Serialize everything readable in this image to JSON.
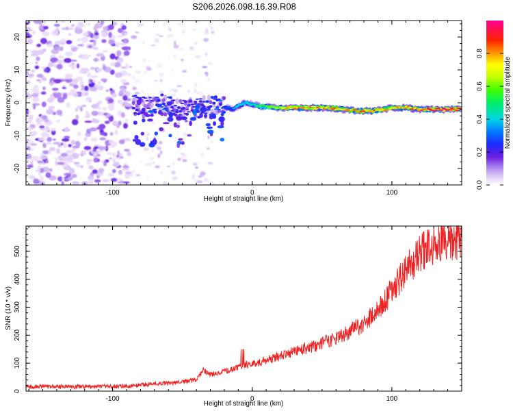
{
  "figure": {
    "title": "S206.2026.098.16.39.R08"
  },
  "chart_data": [
    {
      "type": "heatmap",
      "name": "spectrogram",
      "title": "S206.2026.098.16.39.R08",
      "xlabel": "Height of straight line (km)",
      "ylabel": "Frequency (Hz)",
      "xlim": [
        -162,
        150
      ],
      "ylim": [
        -25,
        25
      ],
      "xticks": [
        -100,
        0,
        100
      ],
      "yticks": [
        -20,
        -10,
        0,
        10,
        20
      ],
      "xtick_labels": [
        "-100",
        "0",
        "100"
      ],
      "ytick_labels": [
        "-20",
        "-10",
        "0",
        "10",
        "20"
      ],
      "colorbar": {
        "label": "Normalized spectral amplitude",
        "range": [
          0,
          1
        ],
        "ticks": [
          0.0,
          0.2,
          0.4,
          0.6,
          0.8
        ],
        "tick_labels": [
          "0.0",
          "0.2",
          "0.4",
          "0.6",
          "0.8"
        ]
      },
      "ridge_frequency_hz": {
        "x": [
          -85,
          -75,
          -65,
          -55,
          -45,
          -35,
          -25,
          -15,
          -5,
          5,
          15,
          25,
          40,
          55,
          65,
          75,
          85,
          95,
          100,
          110,
          120,
          130,
          140,
          150
        ],
        "y": [
          -0.5,
          -1.5,
          -0.5,
          -1.5,
          -2,
          -1.5,
          -0.5,
          -2,
          0,
          -1,
          -1.5,
          -1.5,
          -1.5,
          -1.5,
          -2,
          -2.5,
          -2.5,
          -2,
          -1.5,
          -1.5,
          -2,
          -2,
          -2,
          -2
        ]
      },
      "ridge_amplitude": {
        "x": [
          -85,
          -75,
          -65,
          -55,
          -45,
          -35,
          -25,
          -15,
          -5,
          5,
          15,
          25,
          40,
          55,
          65,
          75,
          85,
          95,
          100,
          110,
          120,
          130,
          140,
          150
        ],
        "y": [
          0.25,
          0.2,
          0.3,
          0.25,
          0.2,
          0.25,
          0.3,
          0.3,
          0.45,
          0.5,
          0.6,
          0.75,
          0.85,
          0.8,
          0.75,
          0.8,
          0.85,
          0.8,
          0.75,
          0.8,
          0.9,
          0.95,
          0.95,
          0.9
        ]
      },
      "noise_region_x": [
        -162,
        -88
      ]
    },
    {
      "type": "line",
      "name": "snr",
      "xlabel": "Height of straight line (km)",
      "ylabel": "SNR (10 * v/v)",
      "xlim": [
        -162,
        150
      ],
      "ylim": [
        0,
        590
      ],
      "xticks": [
        -100,
        0,
        100
      ],
      "yticks": [
        0,
        100,
        200,
        300,
        400,
        500
      ],
      "xtick_labels": [
        "-100",
        "0",
        "100"
      ],
      "ytick_labels": [
        "0",
        "100",
        "200",
        "300",
        "400",
        "500"
      ],
      "series": [
        {
          "name": "SNR",
          "color": "#ee2222",
          "x": [
            -162,
            -150,
            -140,
            -120,
            -100,
            -90,
            -80,
            -70,
            -60,
            -50,
            -40,
            -35,
            -30,
            -25,
            -20,
            -10,
            -5,
            0,
            10,
            20,
            30,
            40,
            50,
            60,
            70,
            80,
            90,
            95,
            100,
            105,
            110,
            115,
            120,
            125,
            130,
            135,
            140,
            145,
            150
          ],
          "y": [
            15,
            17,
            15,
            16,
            17,
            18,
            22,
            25,
            28,
            33,
            40,
            75,
            60,
            65,
            70,
            85,
            95,
            95,
            110,
            125,
            140,
            155,
            170,
            190,
            215,
            240,
            290,
            320,
            360,
            395,
            430,
            460,
            490,
            510,
            525,
            530,
            535,
            530,
            540
          ]
        }
      ]
    }
  ],
  "colors": {
    "snr_line": "#ee2222",
    "noise_speckle": "#7b3fe0"
  }
}
